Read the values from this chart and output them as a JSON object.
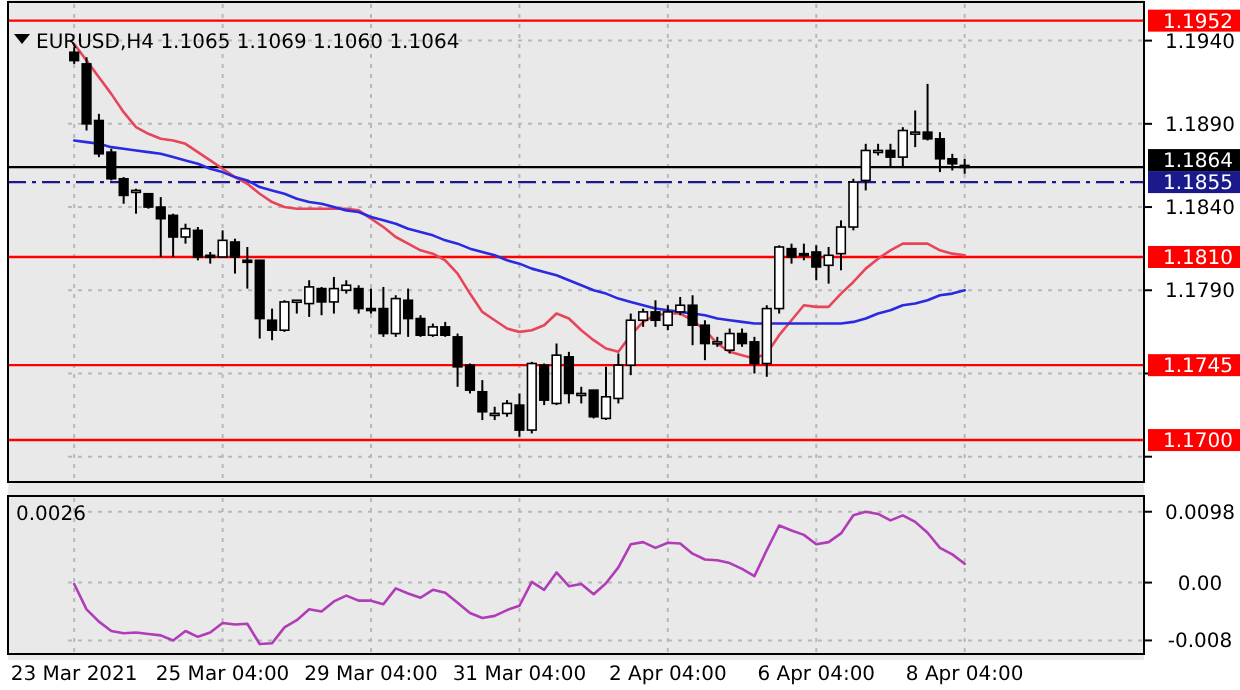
{
  "chart_data": [
    {
      "type": "candlestick",
      "title": "EURUSD,H4  1.1065 1.1069 1.1060 1.1064",
      "tick_labels": "y",
      "grid": true,
      "categories": [
        null,
        null,
        null,
        null,
        null,
        null,
        null,
        null,
        null,
        null,
        null,
        null,
        null,
        null,
        null,
        null,
        null,
        null,
        null,
        null,
        null,
        null,
        null,
        null,
        null,
        null,
        null,
        null,
        null,
        null,
        null,
        null,
        null,
        null,
        null,
        null,
        null,
        null,
        null,
        null,
        null,
        null,
        null,
        null,
        null,
        null,
        null,
        null,
        null,
        null,
        null,
        null,
        null,
        null,
        null,
        null,
        null,
        null,
        null,
        null,
        null,
        null,
        null,
        null,
        null,
        null,
        null,
        null,
        null,
        null,
        null,
        null,
        null,
        null,
        null,
        null,
        null,
        null,
        null,
        null,
        null,
        null,
        null,
        null,
        null,
        null,
        null
      ],
      "ohlc": [
        [
          1.1933,
          1.1936,
          1.1926,
          1.1928
        ],
        [
          1.1926,
          1.193,
          1.1886,
          1.189
        ],
        [
          1.1892,
          1.1896,
          1.187,
          1.1872
        ],
        [
          1.1873,
          1.1875,
          1.1856,
          1.1857
        ],
        [
          1.1857,
          1.1858,
          1.1842,
          1.1847
        ],
        [
          1.1849,
          1.1851,
          1.1836,
          1.185
        ],
        [
          1.1848,
          1.1848,
          1.1839,
          1.184
        ],
        [
          1.184,
          1.1846,
          1.181,
          1.1833
        ],
        [
          1.1835,
          1.1836,
          1.181,
          1.1822
        ],
        [
          1.1822,
          1.183,
          1.1818,
          1.1827
        ],
        [
          1.1826,
          1.1828,
          1.1808,
          1.181
        ],
        [
          1.1811,
          1.1813,
          1.1806,
          1.181
        ],
        [
          1.181,
          1.1826,
          1.181,
          1.182
        ],
        [
          1.1819,
          1.1821,
          1.18,
          1.181
        ],
        [
          1.1808,
          1.1816,
          1.1791,
          1.1807
        ],
        [
          1.1808,
          1.1808,
          1.1761,
          1.1773
        ],
        [
          1.1772,
          1.1779,
          1.176,
          1.1766
        ],
        [
          1.1766,
          1.1784,
          1.1765,
          1.1783
        ],
        [
          1.1783,
          1.1784,
          1.1776,
          1.1784
        ],
        [
          1.1782,
          1.1796,
          1.1774,
          1.1792
        ],
        [
          1.1791,
          1.1792,
          1.1775,
          1.1783
        ],
        [
          1.1783,
          1.1798,
          1.1776,
          1.1791
        ],
        [
          1.179,
          1.1796,
          1.1788,
          1.1793
        ],
        [
          1.1791,
          1.1793,
          1.1776,
          1.1779
        ],
        [
          1.1779,
          1.1791,
          1.1776,
          1.1778
        ],
        [
          1.1779,
          1.1792,
          1.1762,
          1.1764
        ],
        [
          1.1764,
          1.1787,
          1.1762,
          1.1785
        ],
        [
          1.1784,
          1.1791,
          1.1762,
          1.1773
        ],
        [
          1.1773,
          1.1775,
          1.1762,
          1.1763
        ],
        [
          1.1763,
          1.177,
          1.1762,
          1.1768
        ],
        [
          1.1768,
          1.1771,
          1.1762,
          1.1763
        ],
        [
          1.1762,
          1.1764,
          1.1732,
          1.1744
        ],
        [
          1.1745,
          1.1746,
          1.1728,
          1.173
        ],
        [
          1.1729,
          1.1736,
          1.1712,
          1.1717
        ],
        [
          1.1716,
          1.172,
          1.1712,
          1.1716
        ],
        [
          1.1716,
          1.1724,
          1.1714,
          1.1722
        ],
        [
          1.1721,
          1.1728,
          1.1702,
          1.1706
        ],
        [
          1.1706,
          1.1747,
          1.1704,
          1.1746
        ],
        [
          1.1745,
          1.1746,
          1.1721,
          1.1724
        ],
        [
          1.1722,
          1.1758,
          1.1721,
          1.1751
        ],
        [
          1.175,
          1.1753,
          1.1722,
          1.1728
        ],
        [
          1.1728,
          1.1732,
          1.1722,
          1.1728
        ],
        [
          1.173,
          1.173,
          1.1713,
          1.1714
        ],
        [
          1.1713,
          1.1744,
          1.1712,
          1.1726
        ],
        [
          1.1725,
          1.1752,
          1.1722,
          1.1745
        ],
        [
          1.1745,
          1.1776,
          1.1739,
          1.1772
        ],
        [
          1.1772,
          1.1779,
          1.1768,
          1.1777
        ],
        [
          1.1777,
          1.1784,
          1.1768,
          1.1772
        ],
        [
          1.1769,
          1.1781,
          1.1766,
          1.1777
        ],
        [
          1.1777,
          1.1786,
          1.1775,
          1.1781
        ],
        [
          1.1781,
          1.1787,
          1.1757,
          1.1769
        ],
        [
          1.1769,
          1.1772,
          1.1748,
          1.1758
        ],
        [
          1.1758,
          1.1762,
          1.1756,
          1.1759
        ],
        [
          1.1754,
          1.1767,
          1.1752,
          1.1764
        ],
        [
          1.1764,
          1.1767,
          1.1756,
          1.1758
        ],
        [
          1.1759,
          1.1762,
          1.174,
          1.1746
        ],
        [
          1.1746,
          1.1781,
          1.1738,
          1.1779
        ],
        [
          1.1779,
          1.1817,
          1.1776,
          1.1816
        ],
        [
          1.1815,
          1.1818,
          1.1806,
          1.181
        ],
        [
          1.1812,
          1.1818,
          1.1808,
          1.1811
        ],
        [
          1.1813,
          1.1817,
          1.1796,
          1.1804
        ],
        [
          1.1805,
          1.1816,
          1.1794,
          1.1811
        ],
        [
          1.1812,
          1.1832,
          1.1802,
          1.1828
        ],
        [
          1.1828,
          1.1857,
          1.1826,
          1.1855
        ],
        [
          1.1856,
          1.1878,
          1.185,
          1.1874
        ],
        [
          1.1873,
          1.1878,
          1.1871,
          1.1874
        ],
        [
          1.1874,
          1.1878,
          1.1864,
          1.187
        ],
        [
          1.187,
          1.1888,
          1.1864,
          1.1886
        ],
        [
          1.1884,
          1.1898,
          1.1876,
          1.1885
        ],
        [
          1.1885,
          1.1914,
          1.188,
          1.1881
        ],
        [
          1.1881,
          1.1885,
          1.1861,
          1.1869
        ],
        [
          1.1869,
          1.1872,
          1.1862,
          1.1866
        ],
        [
          1.1865,
          1.1869,
          1.186,
          1.1864
        ],
        null,
        null,
        null,
        null,
        null,
        null,
        null,
        null,
        null,
        null,
        null,
        null,
        null,
        null
      ],
      "series": [
        {
          "type": "line",
          "color": "#e8455a",
          "values": [
            1.1938,
            1.1928,
            1.1918,
            1.1908,
            1.1897,
            1.1888,
            1.1884,
            1.1881,
            1.188,
            1.1878,
            1.1873,
            1.1868,
            1.1863,
            1.1858,
            1.1854,
            1.1848,
            1.1843,
            1.184,
            1.1839,
            1.1839,
            1.1839,
            1.1839,
            1.1839,
            1.1838,
            1.1833,
            1.1828,
            1.1822,
            1.1818,
            1.1814,
            1.1812,
            1.1808,
            1.18,
            1.1788,
            1.1777,
            1.1772,
            1.1767,
            1.1765,
            1.1766,
            1.1769,
            1.1776,
            1.1773,
            1.1766,
            1.176,
            1.1755,
            1.1753,
            1.1763,
            1.1771,
            1.1775,
            1.1776,
            1.1776,
            1.1772,
            1.1766,
            1.1758,
            1.1753,
            1.1751,
            1.1749,
            1.1752,
            1.1763,
            1.1772,
            1.1781,
            1.178,
            1.178,
            1.1788,
            1.1795,
            1.1803,
            1.1809,
            1.1814,
            1.1818,
            1.1818,
            1.1818,
            1.1814,
            1.1812,
            1.1811,
            null,
            null,
            null,
            null,
            null,
            null,
            null,
            null,
            null,
            null,
            null,
            null,
            null,
            null
          ]
        },
        {
          "type": "line",
          "color": "#2a2ae0",
          "values": [
            1.188,
            1.1879,
            1.1878,
            1.1876,
            1.1875,
            1.1874,
            1.1873,
            1.1872,
            1.187,
            1.1868,
            1.1866,
            1.1863,
            1.1861,
            1.1858,
            1.1856,
            1.1852,
            1.185,
            1.1848,
            1.1845,
            1.1843,
            1.1842,
            1.184,
            1.1838,
            1.1837,
            1.1834,
            1.1832,
            1.183,
            1.1827,
            1.1825,
            1.1823,
            1.182,
            1.1818,
            1.1815,
            1.1813,
            1.1811,
            1.1808,
            1.1806,
            1.1803,
            1.1801,
            1.1799,
            1.1796,
            1.1793,
            1.179,
            1.1788,
            1.1785,
            1.1783,
            1.1781,
            1.1779,
            1.1778,
            1.1777,
            1.1776,
            1.1775,
            1.1773,
            1.1772,
            1.1771,
            1.177,
            1.177,
            1.177,
            1.177,
            1.177,
            1.177,
            1.177,
            1.177,
            1.1771,
            1.1773,
            1.1776,
            1.1778,
            1.1781,
            1.1782,
            1.1784,
            1.1787,
            1.1788,
            1.179,
            null,
            null,
            null,
            null,
            null,
            null,
            null,
            null,
            null,
            null,
            null,
            null,
            null,
            null
          ]
        }
      ],
      "ylim": [
        1.1676,
        1.1962
      ],
      "yticks": [
        {
          "value": 1.194,
          "label": "1.1940"
        },
        {
          "value": 1.189,
          "label": "1.1890"
        },
        {
          "value": 1.184,
          "label": "1.1840"
        },
        {
          "value": 1.179,
          "label": "1.1790"
        },
        {
          "value": 1.174,
          "label": null
        },
        {
          "value": 1.169,
          "label": null
        }
      ],
      "ref_lines": [
        {
          "axis": "y",
          "value": 1.1952,
          "label": "1.1952",
          "color": "#ff0000"
        },
        {
          "axis": "y",
          "value": 1.1864,
          "label": "1.1864",
          "color": "#000000"
        },
        {
          "axis": "y",
          "value": 1.1855,
          "label": "1.1855",
          "color": "#1a1a8c",
          "line_style": "dashed"
        },
        {
          "axis": "y",
          "value": 1.181,
          "label": "1.1810",
          "color": "#ff0000"
        },
        {
          "axis": "y",
          "value": 1.1745,
          "label": "1.1745",
          "color": "#ff0000"
        },
        {
          "axis": "y",
          "value": 1.17,
          "label": "1.1700",
          "color": "#ff0000"
        }
      ]
    },
    {
      "type": "line",
      "title": "0.0026",
      "grid": true,
      "categories": [
        "23 Mar 2021",
        null,
        null,
        null,
        null,
        null,
        null,
        null,
        null,
        null,
        null,
        null,
        "25 Mar 04:00",
        null,
        null,
        null,
        null,
        null,
        null,
        null,
        null,
        null,
        null,
        null,
        "29 Mar 04:00",
        null,
        null,
        null,
        null,
        null,
        null,
        null,
        null,
        null,
        null,
        null,
        "31 Mar 04:00",
        null,
        null,
        null,
        null,
        null,
        null,
        null,
        null,
        null,
        null,
        null,
        "2 Apr 04:00",
        null,
        null,
        null,
        null,
        null,
        null,
        null,
        null,
        null,
        null,
        null,
        "6 Apr 04:00",
        null,
        null,
        null,
        null,
        null,
        null,
        null,
        null,
        null,
        null,
        null,
        "8 Apr 04:00",
        null,
        null,
        null,
        null,
        null,
        null,
        null,
        null,
        null,
        null,
        null,
        null,
        null,
        null
      ],
      "series": [
        {
          "color": "#b03cb8",
          "values": [
            -0.0002,
            -0.0037,
            -0.0054,
            -0.0067,
            -0.007,
            -0.0069,
            -0.0071,
            -0.0073,
            -0.008,
            -0.0067,
            -0.0075,
            -0.0069,
            -0.0056,
            -0.0058,
            -0.0057,
            -0.0085,
            -0.0084,
            -0.0062,
            -0.0052,
            -0.0037,
            -0.004,
            -0.0026,
            -0.0018,
            -0.0025,
            -0.0025,
            -0.003,
            -0.0008,
            -0.0015,
            -0.0021,
            -0.001,
            -0.0014,
            -0.0028,
            -0.0042,
            -0.0049,
            -0.0046,
            -0.0038,
            -0.0032,
            0.0001,
            -0.001,
            0.0014,
            -0.0005,
            -0.0002,
            -0.0016,
            -0.0001,
            0.0021,
            0.0053,
            0.0056,
            0.0048,
            0.0055,
            0.0054,
            0.004,
            0.0032,
            0.0031,
            0.0027,
            0.0019,
            0.0009,
            0.0045,
            0.0079,
            0.0072,
            0.0066,
            0.0053,
            0.0056,
            0.0068,
            0.0093,
            0.0098,
            0.0095,
            0.0086,
            0.0093,
            0.0084,
            0.0069,
            0.0048,
            0.0039,
            0.0026,
            null,
            null,
            null,
            null,
            null,
            null,
            null,
            null,
            null,
            null,
            null,
            null,
            null,
            null
          ]
        }
      ],
      "ylim": [
        -0.0096,
        0.0117
      ],
      "yticks": [
        0.0098,
        {
          "value": 0,
          "label": "0.00"
        },
        -0.008
      ]
    }
  ]
}
